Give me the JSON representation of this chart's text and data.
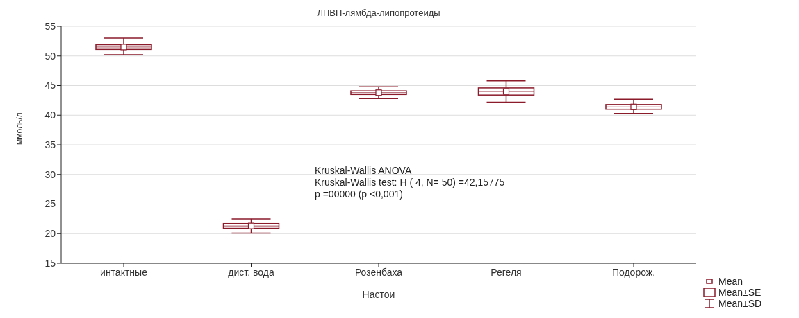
{
  "chart_data": {
    "type": "box",
    "title": "ЛПВП-лямбда-липопротеиды",
    "xlabel": "Настои",
    "ylabel": "ммоль/л",
    "categories": [
      "интактные",
      "дист. вода",
      "Розенбаха",
      "Регеля",
      "Подорож."
    ],
    "color": "#8b1a2b",
    "boxes": [
      {
        "low": 50.2,
        "q1": 51.1,
        "median": 51.5,
        "q3": 51.9,
        "high": 53.0,
        "mean": 51.5
      },
      {
        "low": 20.1,
        "q1": 20.9,
        "median": 21.3,
        "q3": 21.7,
        "high": 22.5,
        "mean": 21.3
      },
      {
        "low": 42.8,
        "q1": 43.5,
        "median": 43.8,
        "q3": 44.1,
        "high": 44.8,
        "mean": 43.8
      },
      {
        "low": 42.2,
        "q1": 43.4,
        "median": 44.0,
        "q3": 44.6,
        "high": 45.8,
        "mean": 44.0
      },
      {
        "low": 40.3,
        "q1": 41.0,
        "median": 41.4,
        "q3": 41.8,
        "high": 42.7,
        "mean": 41.4
      }
    ],
    "ylim": [
      15,
      55
    ],
    "yticks": [
      15,
      20,
      25,
      30,
      35,
      40,
      45,
      50,
      55
    ],
    "grid": "y",
    "annotations": [
      "Kruskal-Wallis ANOVA",
      "Kruskal-Wallis test: H ( 4, N= 50) =42,15775",
      "p =00000 (p <0,001)",
      "Mean",
      "Mean±SE",
      "Mean±SD"
    ]
  }
}
